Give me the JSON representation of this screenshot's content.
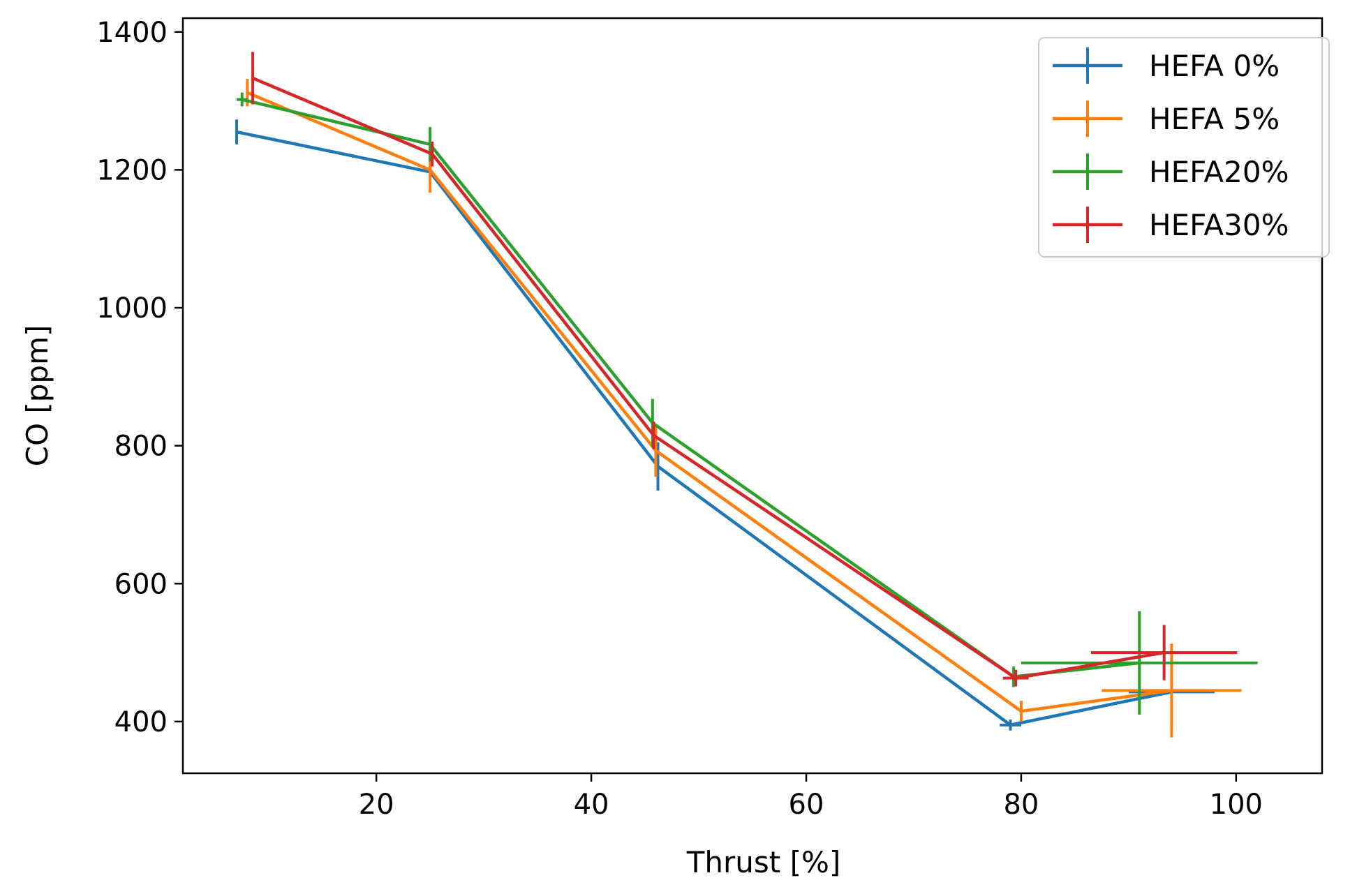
{
  "chart_data": {
    "type": "line",
    "title": "",
    "xlabel": "Thrust [%]",
    "ylabel": "CO [ppm]",
    "xlim": [
      2,
      108
    ],
    "ylim": [
      325,
      1420
    ],
    "xticks": [
      20,
      40,
      60,
      80,
      100
    ],
    "yticks": [
      400,
      600,
      800,
      1000,
      1200,
      1400
    ],
    "grid": false,
    "legend_position": "top-right",
    "series": [
      {
        "name": "HEFA 0%",
        "color": "#1f77b4",
        "points": [
          {
            "x": 7,
            "y": 1255,
            "xerr": 0,
            "yerr": 18
          },
          {
            "x": 25,
            "y": 1197,
            "xerr": 0,
            "yerr": 8
          },
          {
            "x": 46.2,
            "y": 770,
            "xerr": 0,
            "yerr": 35
          },
          {
            "x": 79,
            "y": 395,
            "xerr": 1,
            "yerr": 8
          },
          {
            "x": 94,
            "y": 443,
            "xerr": 4,
            "yerr": 55
          }
        ]
      },
      {
        "name": "HEFA 5%",
        "color": "#ff7f0e",
        "points": [
          {
            "x": 8,
            "y": 1312,
            "xerr": 0,
            "yerr": 20
          },
          {
            "x": 25,
            "y": 1200,
            "xerr": 0,
            "yerr": 33
          },
          {
            "x": 46,
            "y": 793,
            "xerr": 0,
            "yerr": 38
          },
          {
            "x": 80,
            "y": 415,
            "xerr": 0,
            "yerr": 15
          },
          {
            "x": 94,
            "y": 445,
            "xerr": 6.5,
            "yerr": 68
          }
        ]
      },
      {
        "name": "HEFA20%",
        "color": "#2ca02c",
        "points": [
          {
            "x": 7.5,
            "y": 1302,
            "xerr": 0.5,
            "yerr": 10
          },
          {
            "x": 25,
            "y": 1237,
            "xerr": 0,
            "yerr": 25
          },
          {
            "x": 45.7,
            "y": 833,
            "xerr": 0,
            "yerr": 35
          },
          {
            "x": 79.3,
            "y": 465,
            "xerr": 0,
            "yerr": 15
          },
          {
            "x": 91,
            "y": 485,
            "xerr": 11,
            "yerr": 75
          }
        ]
      },
      {
        "name": "HEFA30%",
        "color": "#d62728",
        "points": [
          {
            "x": 8.5,
            "y": 1333,
            "xerr": 0,
            "yerr": 38
          },
          {
            "x": 25.2,
            "y": 1223,
            "xerr": 0,
            "yerr": 18
          },
          {
            "x": 45.8,
            "y": 815,
            "xerr": 0,
            "yerr": 20
          },
          {
            "x": 79.5,
            "y": 463,
            "xerr": 1.2,
            "yerr": 12
          },
          {
            "x": 93.3,
            "y": 500,
            "xerr": 6.8,
            "yerr": 40
          }
        ]
      }
    ]
  }
}
